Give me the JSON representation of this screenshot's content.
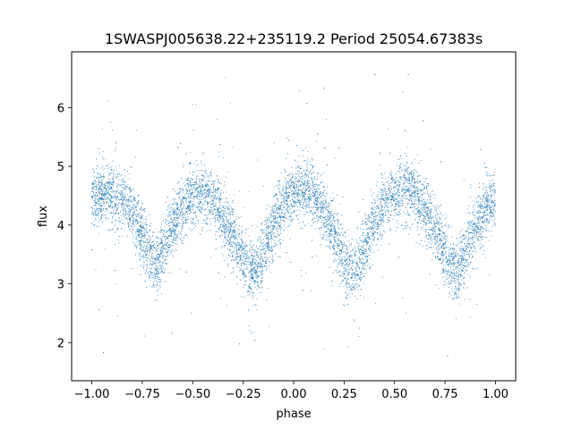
{
  "chart_data": {
    "type": "scatter",
    "title": "1SWASPJ005638.22+235119.2 Period 25054.67383s",
    "xlabel": "phase",
    "ylabel": "flux",
    "xlim": [
      -1.1,
      1.1
    ],
    "ylim": [
      1.35,
      6.95
    ],
    "xticks": [
      "−1.00",
      "−0.75",
      "−0.50",
      "−0.25",
      "0.00",
      "0.25",
      "0.50",
      "0.75",
      "1.00"
    ],
    "xtick_values": [
      -1.0,
      -0.75,
      -0.5,
      -0.25,
      0.0,
      0.25,
      0.5,
      0.75,
      1.0
    ],
    "yticks": [
      "2",
      "3",
      "4",
      "5",
      "6"
    ],
    "ytick_values": [
      2,
      3,
      4,
      5,
      6
    ],
    "grid": false,
    "legend": "none",
    "series": [
      {
        "color": "#1f77b4",
        "marker_size": 1,
        "x_range": [
          -1.0,
          1.0
        ],
        "light_curve_profile": {
          "phase": [
            -1.0,
            -0.95,
            -0.9,
            -0.85,
            -0.8,
            -0.75,
            -0.7,
            -0.68,
            -0.65,
            -0.6,
            -0.55,
            -0.5,
            -0.45,
            -0.4,
            -0.35,
            -0.3,
            -0.25,
            -0.2,
            -0.18,
            -0.15,
            -0.1,
            -0.05,
            0.0,
            0.05,
            0.1,
            0.15,
            0.2,
            0.25,
            0.3,
            0.32,
            0.35,
            0.4,
            0.45,
            0.5,
            0.55,
            0.6,
            0.65,
            0.7,
            0.75,
            0.8,
            0.82,
            0.85,
            0.9,
            0.95,
            1.0
          ],
          "flux": [
            4.4,
            4.55,
            4.55,
            4.45,
            4.2,
            3.85,
            3.4,
            3.3,
            3.6,
            4.0,
            4.3,
            4.45,
            4.55,
            4.45,
            4.15,
            3.8,
            3.4,
            3.2,
            3.25,
            3.55,
            4.0,
            4.35,
            4.5,
            4.6,
            4.5,
            4.2,
            3.85,
            3.4,
            3.2,
            3.3,
            3.6,
            4.05,
            4.35,
            4.5,
            4.6,
            4.5,
            4.25,
            3.9,
            3.5,
            3.2,
            3.25,
            3.55,
            4.0,
            4.3,
            4.45
          ],
          "scatter_spread": 0.25,
          "outlier_range": [
            1.55,
            6.7
          ]
        }
      }
    ]
  }
}
